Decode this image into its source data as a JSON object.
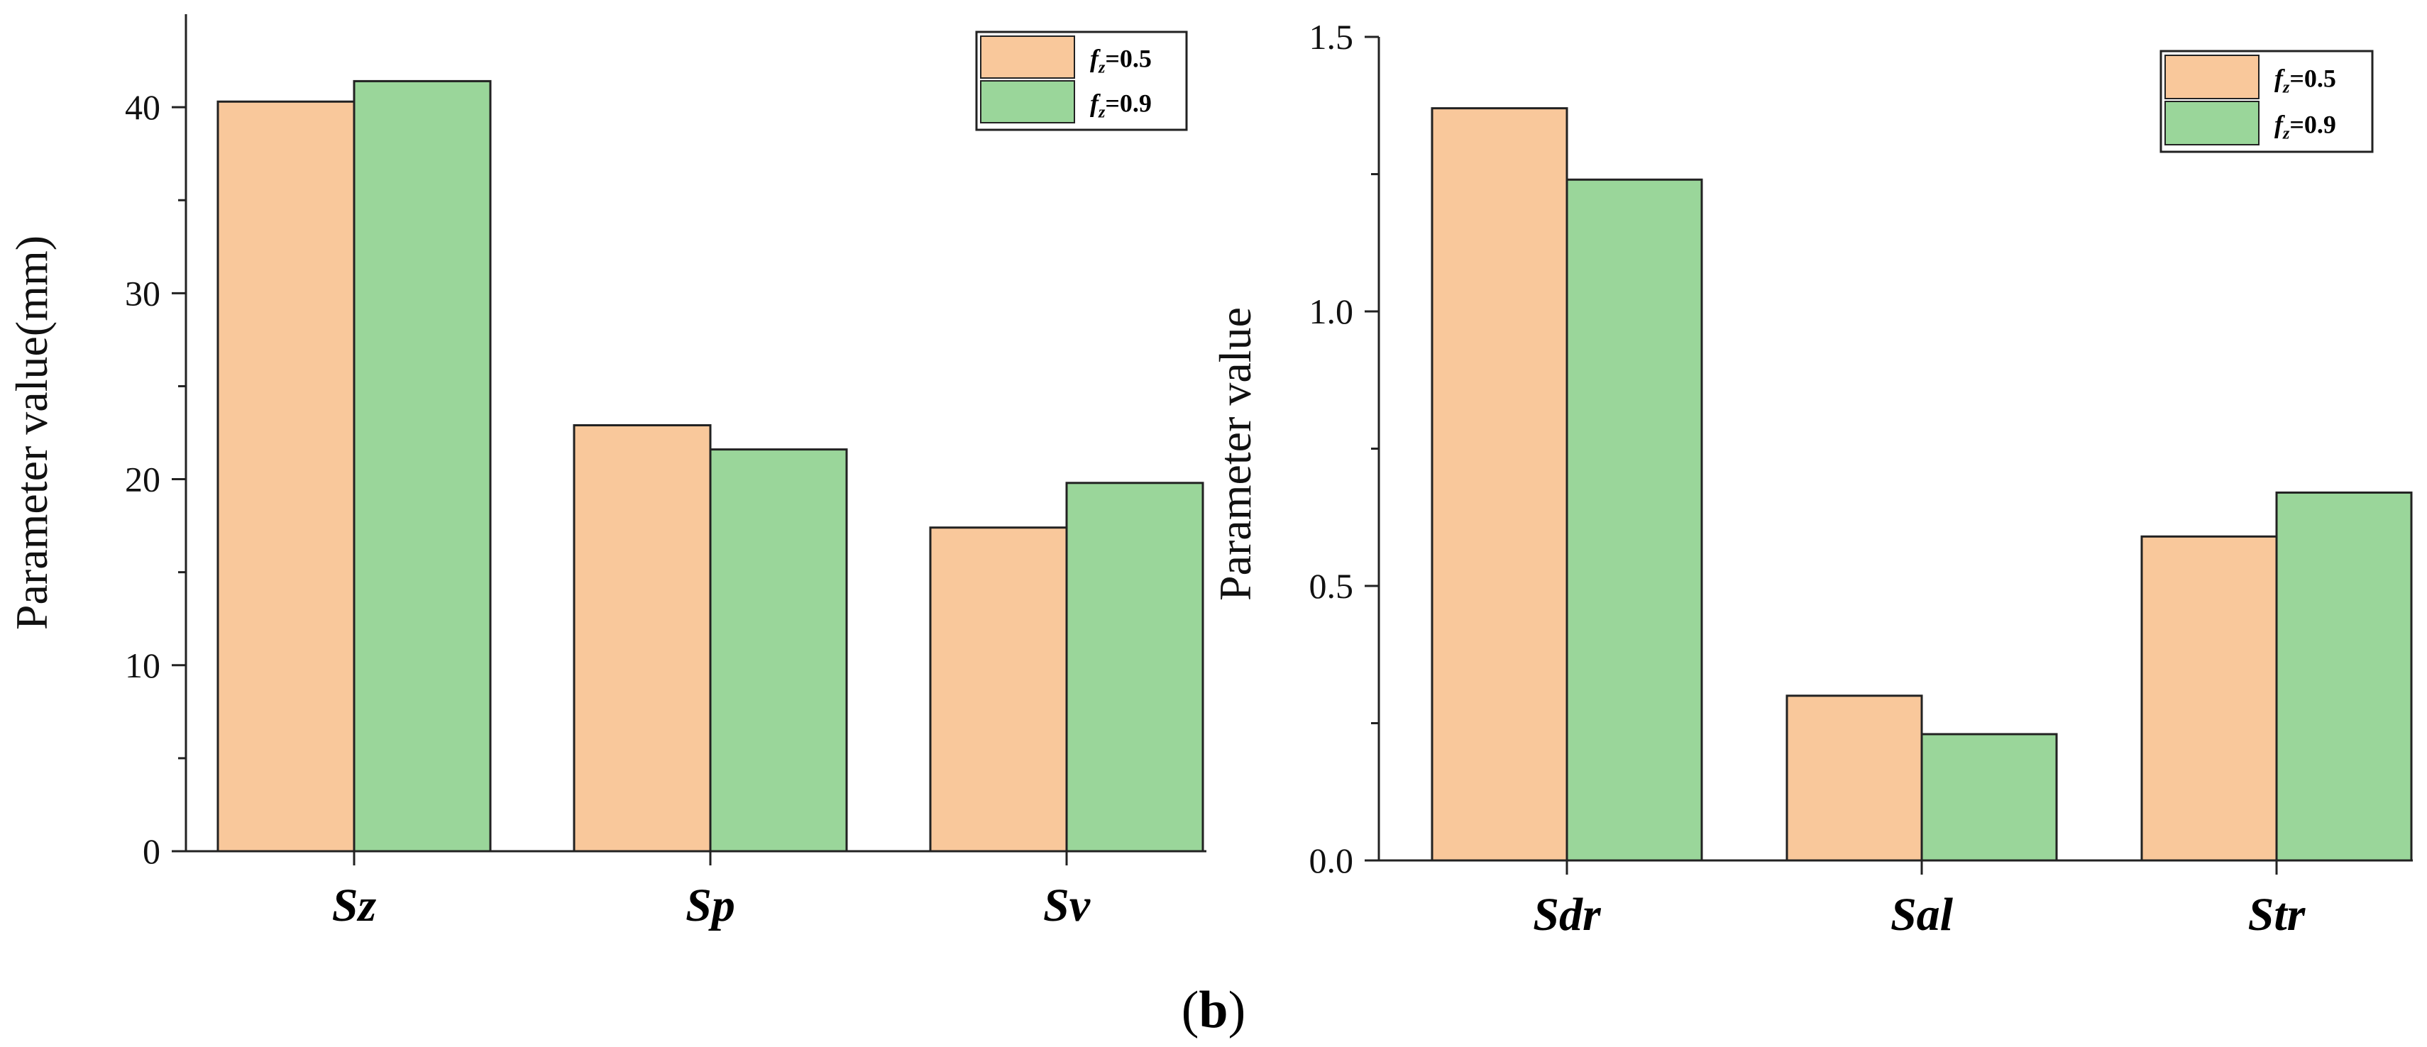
{
  "chart_data": [
    {
      "type": "bar",
      "title": "",
      "xlabel": "",
      "ylabel": "Parameter value(mm)",
      "categories": [
        "Sz",
        "Sp",
        "Sv"
      ],
      "series": [
        {
          "name": "fz=0.5",
          "label_base": "f",
          "label_sub": "z",
          "label_rest": "=0.5",
          "color": "#F9C89B",
          "values": [
            40.3,
            22.9,
            17.4
          ]
        },
        {
          "name": "fz=0.9",
          "label_base": "f",
          "label_sub": "z",
          "label_rest": "=0.9",
          "color": "#9AD69A",
          "values": [
            41.4,
            21.6,
            19.8
          ]
        }
      ],
      "ylim": [
        0,
        45
      ],
      "yticks": [
        0,
        10,
        20,
        30,
        40
      ],
      "ytick_labels": [
        "0",
        "10",
        "20",
        "30",
        "40"
      ],
      "legend_position": "top-right"
    },
    {
      "type": "bar",
      "title": "",
      "xlabel": "",
      "ylabel": "Parameter value",
      "categories": [
        "Sdr",
        "Sal",
        "Str"
      ],
      "series": [
        {
          "name": "fz=0.5",
          "label_base": "f",
          "label_sub": "z",
          "label_rest": "=0.5",
          "color": "#F9C89B",
          "values": [
            1.37,
            0.3,
            0.59
          ]
        },
        {
          "name": "fz=0.9",
          "label_base": "f",
          "label_sub": "z",
          "label_rest": "=0.9",
          "color": "#9AD69A",
          "values": [
            1.24,
            0.23,
            0.67
          ]
        }
      ],
      "ylim": [
        0,
        1.5
      ],
      "yticks": [
        0,
        0.5,
        1.0,
        1.5
      ],
      "ytick_labels": [
        "0.0",
        "0.5",
        "1.0",
        "1.5"
      ],
      "legend_position": "top-right"
    }
  ],
  "figure": {
    "panel_label_open": "(",
    "panel_label_letter": "b",
    "panel_label_close": ")",
    "edge_color": "#222222"
  }
}
